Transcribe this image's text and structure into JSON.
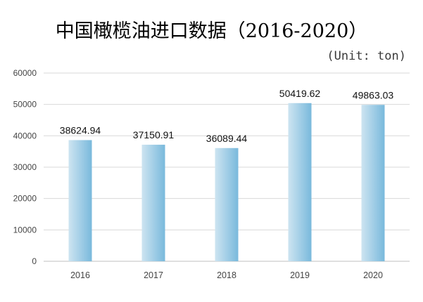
{
  "chart_data": {
    "type": "bar",
    "title": "中国橄榄油进口数据（2016-2020）",
    "unit_label": "(Unit: ton)",
    "categories": [
      "2016",
      "2017",
      "2018",
      "2019",
      "2020"
    ],
    "values": [
      38624.94,
      37150.91,
      36089.44,
      50419.62,
      49863.03
    ],
    "data_labels": [
      "38624.94",
      "37150.91",
      "36089.44",
      "50419.62",
      "49863.03"
    ],
    "y_ticks": [
      "0",
      "10000",
      "20000",
      "30000",
      "40000",
      "50000",
      "60000"
    ],
    "ylim": [
      0,
      60000
    ],
    "grid": true,
    "legend": "none",
    "colors": {
      "bar_light": "#cde4f1",
      "bar_dark": "#79b9dc",
      "grid": "#d9d9d9",
      "axis": "#bfbfbf"
    }
  }
}
